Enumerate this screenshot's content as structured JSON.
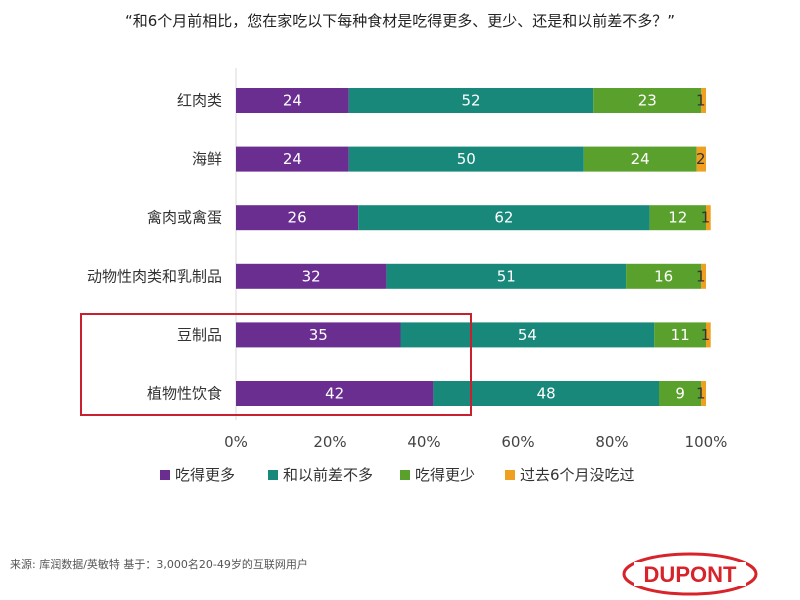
{
  "header": {
    "title": "“和6个月前相比，您在家吃以下每种食材是吃得更多、更少、还是和以前差不多？”"
  },
  "chart_data": {
    "type": "bar",
    "orientation": "horizontal",
    "stacked": true,
    "title": "“和6个月前相比，您在家吃以下每种食材是吃得更多、更少、还是和以前差不多？”",
    "categories": [
      "红肉类",
      "海鲜",
      "禽肉或禽蛋",
      "动物性肉类和乳制品",
      "豆制品",
      "植物性饮食"
    ],
    "series": [
      {
        "name": "吃得更多",
        "color": "#6a2e91",
        "values": [
          24,
          24,
          26,
          32,
          35,
          42
        ]
      },
      {
        "name": "和以前差不多",
        "color": "#17887a",
        "values": [
          52,
          50,
          62,
          51,
          54,
          48
        ]
      },
      {
        "name": "吃得更少",
        "color": "#5aa02c",
        "values": [
          23,
          24,
          12,
          16,
          11,
          9
        ]
      },
      {
        "name": "过去6个月没吃过",
        "color": "#f0a020",
        "values": [
          1,
          2,
          1,
          1,
          1,
          1
        ]
      }
    ],
    "xlim": [
      0,
      100
    ],
    "x_ticks": [
      "0%",
      "20%",
      "40%",
      "60%",
      "80%",
      "100%"
    ],
    "legend_position": "bottom",
    "grid": false,
    "highlight": {
      "categories": [
        "豆制品",
        "植物性饮食"
      ],
      "color": "#c8202f"
    }
  },
  "footer": {
    "source": "来源: 库润数据/英敏特    基于：3,000名20-49岁的互联网用户",
    "logo_text": "DUPONT",
    "logo_color": "#d8232a"
  }
}
